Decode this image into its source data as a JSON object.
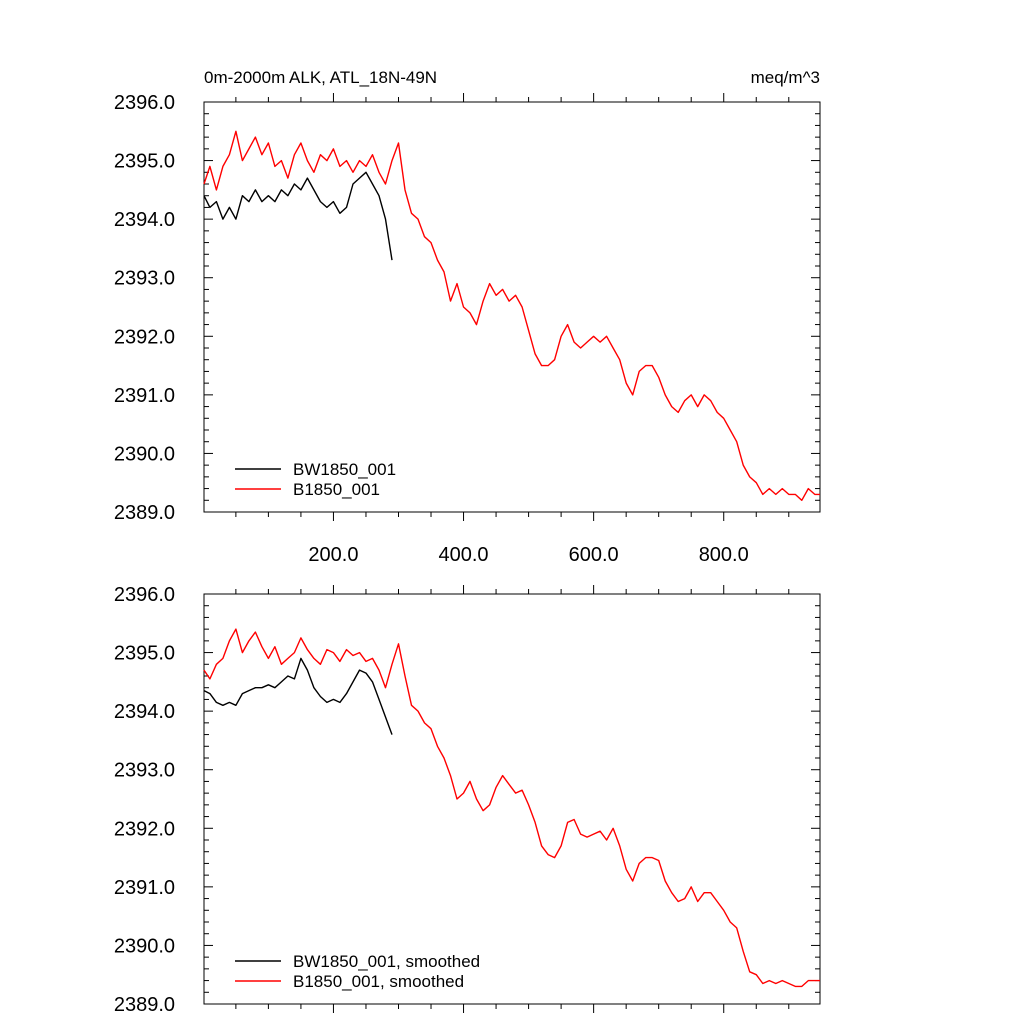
{
  "chart_data": [
    {
      "type": "line",
      "title_left": "0m-2000m ALK, ATL_18N-49N",
      "title_right": "meq/m^3",
      "xlabel": "",
      "ylabel": "",
      "xlim": [
        1,
        948
      ],
      "ylim": [
        2389.0,
        2396.0
      ],
      "x_ticks": [
        200,
        400,
        600,
        800
      ],
      "x_tick_labels": [
        "200.0",
        "400.0",
        "600.0",
        "800.0"
      ],
      "y_ticks": [
        2389,
        2390,
        2391,
        2392,
        2393,
        2394,
        2395,
        2396
      ],
      "y_tick_labels": [
        "2389.0",
        "2390.0",
        "2391.0",
        "2392.0",
        "2393.0",
        "2394.0",
        "2395.0",
        "2396.0"
      ],
      "legend_position": "bottom-left",
      "series": [
        {
          "name": "BW1850_001",
          "color": "#000000",
          "x": [
            1,
            10,
            20,
            30,
            40,
            50,
            60,
            70,
            80,
            90,
            100,
            110,
            120,
            130,
            140,
            150,
            160,
            170,
            180,
            190,
            200,
            210,
            220,
            230,
            240,
            250,
            260,
            270,
            280,
            290
          ],
          "values": [
            2394.4,
            2394.2,
            2394.3,
            2394.0,
            2394.2,
            2394.0,
            2394.4,
            2394.3,
            2394.5,
            2394.3,
            2394.4,
            2394.3,
            2394.5,
            2394.4,
            2394.6,
            2394.5,
            2394.7,
            2394.5,
            2394.3,
            2394.2,
            2394.3,
            2394.1,
            2394.2,
            2394.6,
            2394.7,
            2394.8,
            2394.6,
            2394.4,
            2394.0,
            2393.3
          ]
        },
        {
          "name": "B1850_001",
          "color": "#ff0000",
          "x": [
            1,
            10,
            20,
            30,
            40,
            50,
            60,
            70,
            80,
            90,
            100,
            110,
            120,
            130,
            140,
            150,
            160,
            170,
            180,
            190,
            200,
            210,
            220,
            230,
            240,
            250,
            260,
            270,
            280,
            290,
            300,
            310,
            320,
            330,
            340,
            350,
            360,
            370,
            380,
            390,
            400,
            410,
            420,
            430,
            440,
            450,
            460,
            470,
            480,
            490,
            500,
            510,
            520,
            530,
            540,
            550,
            560,
            570,
            580,
            590,
            600,
            610,
            620,
            630,
            640,
            650,
            660,
            670,
            680,
            690,
            700,
            710,
            720,
            730,
            740,
            750,
            760,
            770,
            780,
            790,
            800,
            810,
            820,
            830,
            840,
            850,
            860,
            870,
            880,
            890,
            900,
            910,
            920,
            930,
            940,
            948
          ],
          "values": [
            2394.6,
            2394.9,
            2394.5,
            2394.9,
            2395.1,
            2395.5,
            2395.0,
            2395.2,
            2395.4,
            2395.1,
            2395.3,
            2394.9,
            2395.0,
            2394.7,
            2395.1,
            2395.3,
            2395.0,
            2394.8,
            2395.1,
            2395.0,
            2395.2,
            2394.9,
            2395.0,
            2394.8,
            2395.0,
            2394.9,
            2395.1,
            2394.8,
            2394.6,
            2395.0,
            2395.3,
            2394.5,
            2394.1,
            2394.0,
            2393.7,
            2393.6,
            2393.3,
            2393.1,
            2392.6,
            2392.9,
            2392.5,
            2392.4,
            2392.2,
            2392.6,
            2392.9,
            2392.7,
            2392.8,
            2392.6,
            2392.7,
            2392.5,
            2392.1,
            2391.7,
            2391.5,
            2391.5,
            2391.6,
            2392.0,
            2392.2,
            2391.9,
            2391.8,
            2391.9,
            2392.0,
            2391.9,
            2392.0,
            2391.8,
            2391.6,
            2391.2,
            2391.0,
            2391.4,
            2391.5,
            2391.5,
            2391.3,
            2391.0,
            2390.8,
            2390.7,
            2390.9,
            2391.0,
            2390.8,
            2391.0,
            2390.9,
            2390.7,
            2390.6,
            2390.4,
            2390.2,
            2389.8,
            2389.6,
            2389.5,
            2389.3,
            2389.4,
            2389.3,
            2389.4,
            2389.3,
            2389.3,
            2389.2,
            2389.4,
            2389.3,
            2389.3
          ]
        }
      ]
    },
    {
      "type": "line",
      "title_left": "",
      "title_right": "",
      "xlabel": "",
      "ylabel": "",
      "xlim": [
        1,
        948
      ],
      "ylim": [
        2389.0,
        2396.0
      ],
      "x_ticks": [
        200,
        400,
        600,
        800
      ],
      "x_tick_labels": [],
      "y_ticks": [
        2389,
        2390,
        2391,
        2392,
        2393,
        2394,
        2395,
        2396
      ],
      "y_tick_labels": [
        "2389.0",
        "2390.0",
        "2391.0",
        "2392.0",
        "2393.0",
        "2394.0",
        "2395.0",
        "2396.0"
      ],
      "legend_position": "bottom-left",
      "series": [
        {
          "name": "BW1850_001, smoothed",
          "color": "#000000",
          "x": [
            1,
            10,
            20,
            30,
            40,
            50,
            60,
            70,
            80,
            90,
            100,
            110,
            120,
            130,
            140,
            150,
            160,
            170,
            180,
            190,
            200,
            210,
            220,
            230,
            240,
            250,
            260,
            270,
            280,
            290
          ],
          "values": [
            2394.35,
            2394.3,
            2394.15,
            2394.1,
            2394.15,
            2394.1,
            2394.3,
            2394.35,
            2394.4,
            2394.4,
            2394.45,
            2394.4,
            2394.5,
            2394.6,
            2394.55,
            2394.9,
            2394.7,
            2394.4,
            2394.25,
            2394.15,
            2394.2,
            2394.15,
            2394.3,
            2394.5,
            2394.7,
            2394.65,
            2394.5,
            2394.2,
            2393.9,
            2393.6
          ]
        },
        {
          "name": "B1850_001, smoothed",
          "color": "#ff0000",
          "x": [
            1,
            10,
            20,
            30,
            40,
            50,
            60,
            70,
            80,
            90,
            100,
            110,
            120,
            130,
            140,
            150,
            160,
            170,
            180,
            190,
            200,
            210,
            220,
            230,
            240,
            250,
            260,
            270,
            280,
            290,
            300,
            310,
            320,
            330,
            340,
            350,
            360,
            370,
            380,
            390,
            400,
            410,
            420,
            430,
            440,
            450,
            460,
            470,
            480,
            490,
            500,
            510,
            520,
            530,
            540,
            550,
            560,
            570,
            580,
            590,
            600,
            610,
            620,
            630,
            640,
            650,
            660,
            670,
            680,
            690,
            700,
            710,
            720,
            730,
            740,
            750,
            760,
            770,
            780,
            790,
            800,
            810,
            820,
            830,
            840,
            850,
            860,
            870,
            880,
            890,
            900,
            910,
            920,
            930,
            940,
            948
          ],
          "values": [
            2394.7,
            2394.55,
            2394.8,
            2394.9,
            2395.2,
            2395.4,
            2395.0,
            2395.2,
            2395.35,
            2395.1,
            2394.9,
            2395.1,
            2394.8,
            2394.9,
            2395.0,
            2395.25,
            2395.05,
            2394.9,
            2394.8,
            2395.05,
            2395.0,
            2394.85,
            2395.05,
            2394.95,
            2395.0,
            2394.85,
            2394.9,
            2394.7,
            2394.4,
            2394.8,
            2395.15,
            2394.6,
            2394.1,
            2394.0,
            2393.8,
            2393.7,
            2393.4,
            2393.2,
            2392.9,
            2392.5,
            2392.6,
            2392.8,
            2392.5,
            2392.3,
            2392.4,
            2392.7,
            2392.9,
            2392.75,
            2392.6,
            2392.65,
            2392.4,
            2392.1,
            2391.7,
            2391.55,
            2391.5,
            2391.7,
            2392.1,
            2392.15,
            2391.9,
            2391.85,
            2391.9,
            2391.95,
            2391.8,
            2392.0,
            2391.7,
            2391.3,
            2391.1,
            2391.4,
            2391.5,
            2391.5,
            2391.45,
            2391.1,
            2390.9,
            2390.75,
            2390.8,
            2391.0,
            2390.75,
            2390.9,
            2390.9,
            2390.75,
            2390.6,
            2390.4,
            2390.3,
            2389.9,
            2389.55,
            2389.5,
            2389.35,
            2389.4,
            2389.35,
            2389.4,
            2389.35,
            2389.3,
            2389.3,
            2389.4,
            2389.4,
            2389.4
          ]
        }
      ]
    }
  ]
}
